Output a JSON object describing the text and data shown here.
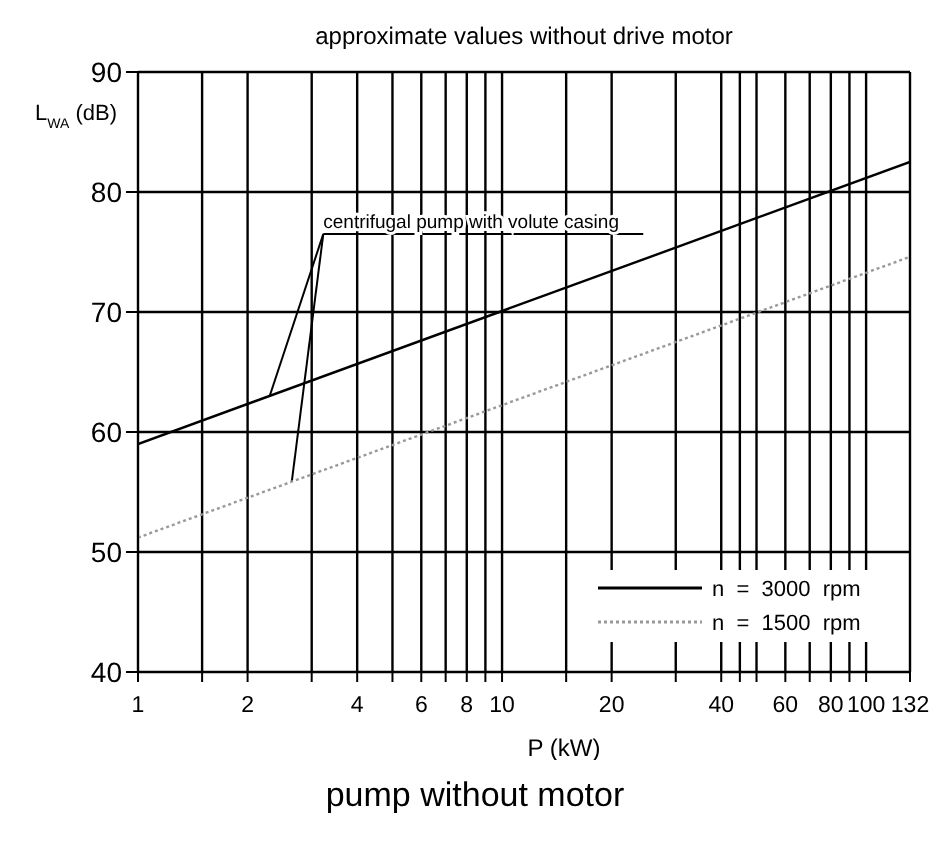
{
  "chart_data": {
    "type": "line",
    "title": "approximate values without drive motor",
    "xlabel": "P (kW)",
    "ylabel": "L$_{WA}$ (dB)",
    "log": "x",
    "xlim": [
      1,
      132
    ],
    "xticks": [
      1,
      {
        "value": 1.5,
        "label": null
      },
      2,
      {
        "value": 3,
        "label": null
      },
      4,
      {
        "value": 5,
        "label": null
      },
      6,
      {
        "value": 7,
        "label": null
      },
      8,
      {
        "value": 9,
        "label": null
      },
      10,
      {
        "value": 15,
        "label": null
      },
      20,
      {
        "value": 30,
        "label": null
      },
      40,
      {
        "value": 45,
        "label": null
      },
      {
        "value": 50,
        "label": null
      },
      60,
      {
        "value": 70,
        "label": null
      },
      80,
      {
        "value": 90,
        "label": null
      },
      100,
      132
    ],
    "x": [
      1,
      132
    ],
    "ylim": [
      40,
      90
    ],
    "yticks": [
      40,
      50,
      60,
      70,
      80,
      90
    ],
    "grid": true,
    "legend": "bottom right",
    "marker": "none",
    "series": [
      {
        "name": "n  =  3000  rpm",
        "color": "#000000",
        "line_style": "solid",
        "values": [
          59,
          82.5
        ]
      },
      {
        "name": "n  =  1500  rpm",
        "color": "#999999",
        "line_style": "dotted",
        "values": [
          51.2,
          74.6
        ]
      }
    ],
    "annotations": [
      {
        "text": "centrifugal pump with volute casing",
        "x": 2.3,
        "y": 63
      },
      "pump without motor"
    ]
  }
}
